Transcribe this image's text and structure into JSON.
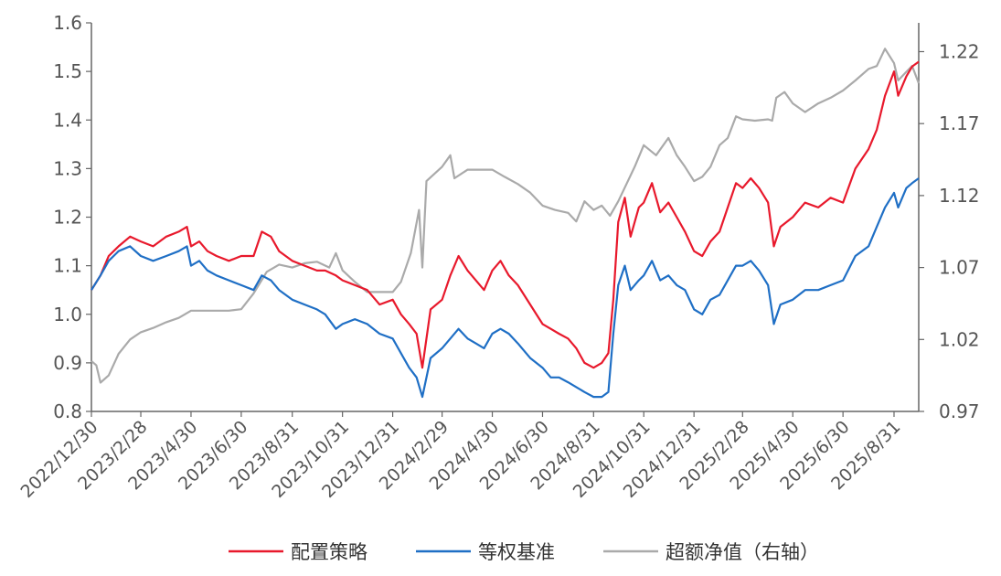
{
  "chart_data": {
    "type": "line",
    "title": "",
    "xlabel": "",
    "ylabel_left": "",
    "ylabel_right": "",
    "y_left_range": [
      0.8,
      1.6
    ],
    "y_left_ticks": [
      "0.8",
      "0.9",
      "1.0",
      "1.1",
      "1.2",
      "1.3",
      "1.4",
      "1.5",
      "1.6"
    ],
    "y_right_range": [
      0.97,
      1.24
    ],
    "y_right_ticks": [
      "0.97",
      "1.02",
      "1.07",
      "1.12",
      "1.17",
      "1.22"
    ],
    "x_range": [
      "2022-12-30",
      "2025-09-30"
    ],
    "x_tick_labels": [
      "2022/12/30",
      "2023/2/28",
      "2023/4/30",
      "2023/6/30",
      "2023/8/31",
      "2023/10/31",
      "2023/12/31",
      "2024/2/29",
      "2024/4/30",
      "2024/6/30",
      "2024/8/31",
      "2024/10/31",
      "2024/12/31",
      "2025/2/28",
      "2025/4/30",
      "2025/6/30",
      "2025/8/31"
    ],
    "x_tick_dates": [
      "2022-12-30",
      "2023-02-28",
      "2023-04-30",
      "2023-06-30",
      "2023-08-31",
      "2023-10-31",
      "2023-12-31",
      "2024-02-29",
      "2024-04-30",
      "2024-06-30",
      "2024-08-31",
      "2024-10-31",
      "2024-12-31",
      "2025-02-28",
      "2025-04-30",
      "2025-06-30",
      "2025-08-31"
    ],
    "grid": false,
    "legend_position": "bottom",
    "series": [
      {
        "name": "配置策略",
        "axis": "left",
        "color": "#e8192c",
        "points": [
          [
            "2022-12-30",
            1.05
          ],
          [
            "2023-01-10",
            1.08
          ],
          [
            "2023-01-20",
            1.12
          ],
          [
            "2023-02-01",
            1.14
          ],
          [
            "2023-02-15",
            1.16
          ],
          [
            "2023-02-28",
            1.15
          ],
          [
            "2023-03-15",
            1.14
          ],
          [
            "2023-03-31",
            1.16
          ],
          [
            "2023-04-15",
            1.17
          ],
          [
            "2023-04-25",
            1.18
          ],
          [
            "2023-04-30",
            1.14
          ],
          [
            "2023-05-10",
            1.15
          ],
          [
            "2023-05-20",
            1.13
          ],
          [
            "2023-05-31",
            1.12
          ],
          [
            "2023-06-15",
            1.11
          ],
          [
            "2023-06-30",
            1.12
          ],
          [
            "2023-07-15",
            1.12
          ],
          [
            "2023-07-25",
            1.17
          ],
          [
            "2023-08-05",
            1.16
          ],
          [
            "2023-08-15",
            1.13
          ],
          [
            "2023-08-31",
            1.11
          ],
          [
            "2023-09-15",
            1.1
          ],
          [
            "2023-09-30",
            1.09
          ],
          [
            "2023-10-10",
            1.09
          ],
          [
            "2023-10-23",
            1.08
          ],
          [
            "2023-10-31",
            1.07
          ],
          [
            "2023-11-15",
            1.06
          ],
          [
            "2023-11-30",
            1.05
          ],
          [
            "2023-12-15",
            1.02
          ],
          [
            "2023-12-31",
            1.03
          ],
          [
            "2024-01-10",
            1.0
          ],
          [
            "2024-01-20",
            0.98
          ],
          [
            "2024-01-29",
            0.96
          ],
          [
            "2024-02-05",
            0.89
          ],
          [
            "2024-02-15",
            1.01
          ],
          [
            "2024-02-29",
            1.03
          ],
          [
            "2024-03-10",
            1.08
          ],
          [
            "2024-03-20",
            1.12
          ],
          [
            "2024-03-31",
            1.09
          ],
          [
            "2024-04-10",
            1.07
          ],
          [
            "2024-04-20",
            1.05
          ],
          [
            "2024-04-30",
            1.09
          ],
          [
            "2024-05-10",
            1.11
          ],
          [
            "2024-05-20",
            1.08
          ],
          [
            "2024-05-31",
            1.06
          ],
          [
            "2024-06-15",
            1.02
          ],
          [
            "2024-06-30",
            0.98
          ],
          [
            "2024-07-10",
            0.97
          ],
          [
            "2024-07-20",
            0.96
          ],
          [
            "2024-07-31",
            0.95
          ],
          [
            "2024-08-10",
            0.93
          ],
          [
            "2024-08-20",
            0.9
          ],
          [
            "2024-08-31",
            0.89
          ],
          [
            "2024-09-10",
            0.9
          ],
          [
            "2024-09-18",
            0.92
          ],
          [
            "2024-09-24",
            1.03
          ],
          [
            "2024-09-30",
            1.19
          ],
          [
            "2024-10-08",
            1.24
          ],
          [
            "2024-10-15",
            1.16
          ],
          [
            "2024-10-25",
            1.22
          ],
          [
            "2024-10-31",
            1.23
          ],
          [
            "2024-11-10",
            1.27
          ],
          [
            "2024-11-20",
            1.21
          ],
          [
            "2024-11-30",
            1.23
          ],
          [
            "2024-12-10",
            1.2
          ],
          [
            "2024-12-20",
            1.17
          ],
          [
            "2024-12-31",
            1.13
          ],
          [
            "2025-01-10",
            1.12
          ],
          [
            "2025-01-20",
            1.15
          ],
          [
            "2025-01-31",
            1.17
          ],
          [
            "2025-02-10",
            1.22
          ],
          [
            "2025-02-20",
            1.27
          ],
          [
            "2025-02-28",
            1.26
          ],
          [
            "2025-03-10",
            1.28
          ],
          [
            "2025-03-20",
            1.26
          ],
          [
            "2025-03-31",
            1.23
          ],
          [
            "2025-04-07",
            1.14
          ],
          [
            "2025-04-15",
            1.18
          ],
          [
            "2025-04-30",
            1.2
          ],
          [
            "2025-05-15",
            1.23
          ],
          [
            "2025-05-31",
            1.22
          ],
          [
            "2025-06-15",
            1.24
          ],
          [
            "2025-06-30",
            1.23
          ],
          [
            "2025-07-15",
            1.3
          ],
          [
            "2025-07-31",
            1.34
          ],
          [
            "2025-08-10",
            1.38
          ],
          [
            "2025-08-20",
            1.45
          ],
          [
            "2025-08-31",
            1.5
          ],
          [
            "2025-09-05",
            1.45
          ],
          [
            "2025-09-15",
            1.49
          ],
          [
            "2025-09-22",
            1.51
          ],
          [
            "2025-09-30",
            1.52
          ]
        ]
      },
      {
        "name": "等权基准",
        "axis": "left",
        "color": "#1f6fc5",
        "points": [
          [
            "2022-12-30",
            1.05
          ],
          [
            "2023-01-10",
            1.08
          ],
          [
            "2023-01-20",
            1.11
          ],
          [
            "2023-02-01",
            1.13
          ],
          [
            "2023-02-15",
            1.14
          ],
          [
            "2023-02-28",
            1.12
          ],
          [
            "2023-03-15",
            1.11
          ],
          [
            "2023-03-31",
            1.12
          ],
          [
            "2023-04-15",
            1.13
          ],
          [
            "2023-04-25",
            1.14
          ],
          [
            "2023-04-30",
            1.1
          ],
          [
            "2023-05-10",
            1.11
          ],
          [
            "2023-05-20",
            1.09
          ],
          [
            "2023-05-31",
            1.08
          ],
          [
            "2023-06-15",
            1.07
          ],
          [
            "2023-06-30",
            1.06
          ],
          [
            "2023-07-15",
            1.05
          ],
          [
            "2023-07-25",
            1.08
          ],
          [
            "2023-08-05",
            1.07
          ],
          [
            "2023-08-15",
            1.05
          ],
          [
            "2023-08-31",
            1.03
          ],
          [
            "2023-09-15",
            1.02
          ],
          [
            "2023-09-30",
            1.01
          ],
          [
            "2023-10-10",
            1.0
          ],
          [
            "2023-10-23",
            0.97
          ],
          [
            "2023-10-31",
            0.98
          ],
          [
            "2023-11-15",
            0.99
          ],
          [
            "2023-11-30",
            0.98
          ],
          [
            "2023-12-15",
            0.96
          ],
          [
            "2023-12-31",
            0.95
          ],
          [
            "2024-01-10",
            0.92
          ],
          [
            "2024-01-20",
            0.89
          ],
          [
            "2024-01-29",
            0.87
          ],
          [
            "2024-02-05",
            0.83
          ],
          [
            "2024-02-15",
            0.91
          ],
          [
            "2024-02-29",
            0.93
          ],
          [
            "2024-03-10",
            0.95
          ],
          [
            "2024-03-20",
            0.97
          ],
          [
            "2024-03-31",
            0.95
          ],
          [
            "2024-04-10",
            0.94
          ],
          [
            "2024-04-20",
            0.93
          ],
          [
            "2024-04-30",
            0.96
          ],
          [
            "2024-05-10",
            0.97
          ],
          [
            "2024-05-20",
            0.96
          ],
          [
            "2024-05-31",
            0.94
          ],
          [
            "2024-06-15",
            0.91
          ],
          [
            "2024-06-30",
            0.89
          ],
          [
            "2024-07-10",
            0.87
          ],
          [
            "2024-07-20",
            0.87
          ],
          [
            "2024-07-31",
            0.86
          ],
          [
            "2024-08-10",
            0.85
          ],
          [
            "2024-08-20",
            0.84
          ],
          [
            "2024-08-31",
            0.83
          ],
          [
            "2024-09-10",
            0.83
          ],
          [
            "2024-09-18",
            0.84
          ],
          [
            "2024-09-24",
            0.96
          ],
          [
            "2024-09-30",
            1.06
          ],
          [
            "2024-10-08",
            1.1
          ],
          [
            "2024-10-15",
            1.05
          ],
          [
            "2024-10-25",
            1.07
          ],
          [
            "2024-10-31",
            1.08
          ],
          [
            "2024-11-10",
            1.11
          ],
          [
            "2024-11-20",
            1.07
          ],
          [
            "2024-11-30",
            1.08
          ],
          [
            "2024-12-10",
            1.06
          ],
          [
            "2024-12-20",
            1.05
          ],
          [
            "2024-12-31",
            1.01
          ],
          [
            "2025-01-10",
            1.0
          ],
          [
            "2025-01-20",
            1.03
          ],
          [
            "2025-01-31",
            1.04
          ],
          [
            "2025-02-10",
            1.07
          ],
          [
            "2025-02-20",
            1.1
          ],
          [
            "2025-02-28",
            1.1
          ],
          [
            "2025-03-10",
            1.11
          ],
          [
            "2025-03-20",
            1.09
          ],
          [
            "2025-03-31",
            1.06
          ],
          [
            "2025-04-07",
            0.98
          ],
          [
            "2025-04-15",
            1.02
          ],
          [
            "2025-04-30",
            1.03
          ],
          [
            "2025-05-15",
            1.05
          ],
          [
            "2025-05-31",
            1.05
          ],
          [
            "2025-06-15",
            1.06
          ],
          [
            "2025-06-30",
            1.07
          ],
          [
            "2025-07-15",
            1.12
          ],
          [
            "2025-07-31",
            1.14
          ],
          [
            "2025-08-10",
            1.18
          ],
          [
            "2025-08-20",
            1.22
          ],
          [
            "2025-08-31",
            1.25
          ],
          [
            "2025-09-05",
            1.22
          ],
          [
            "2025-09-15",
            1.26
          ],
          [
            "2025-09-22",
            1.27
          ],
          [
            "2025-09-30",
            1.28
          ]
        ]
      },
      {
        "name": "超额净值（右轴）",
        "axis": "right",
        "color": "#aaaaaa",
        "points": [
          [
            "2022-12-30",
            1.005
          ],
          [
            "2023-01-05",
            1.002
          ],
          [
            "2023-01-10",
            0.99
          ],
          [
            "2023-01-20",
            0.995
          ],
          [
            "2023-02-01",
            1.01
          ],
          [
            "2023-02-15",
            1.02
          ],
          [
            "2023-02-28",
            1.025
          ],
          [
            "2023-03-15",
            1.028
          ],
          [
            "2023-03-31",
            1.032
          ],
          [
            "2023-04-15",
            1.035
          ],
          [
            "2023-04-30",
            1.04
          ],
          [
            "2023-05-15",
            1.04
          ],
          [
            "2023-05-31",
            1.04
          ],
          [
            "2023-06-15",
            1.04
          ],
          [
            "2023-06-30",
            1.041
          ],
          [
            "2023-07-15",
            1.052
          ],
          [
            "2023-07-31",
            1.067
          ],
          [
            "2023-08-15",
            1.072
          ],
          [
            "2023-08-31",
            1.07
          ],
          [
            "2023-09-15",
            1.073
          ],
          [
            "2023-09-30",
            1.074
          ],
          [
            "2023-10-15",
            1.07
          ],
          [
            "2023-10-23",
            1.08
          ],
          [
            "2023-10-31",
            1.068
          ],
          [
            "2023-11-15",
            1.06
          ],
          [
            "2023-11-30",
            1.053
          ],
          [
            "2023-12-15",
            1.053
          ],
          [
            "2023-12-31",
            1.053
          ],
          [
            "2024-01-10",
            1.06
          ],
          [
            "2024-01-22",
            1.08
          ],
          [
            "2024-02-01",
            1.11
          ],
          [
            "2024-02-05",
            1.07
          ],
          [
            "2024-02-10",
            1.13
          ],
          [
            "2024-02-29",
            1.14
          ],
          [
            "2024-03-10",
            1.148
          ],
          [
            "2024-03-15",
            1.132
          ],
          [
            "2024-03-31",
            1.138
          ],
          [
            "2024-04-15",
            1.138
          ],
          [
            "2024-04-30",
            1.138
          ],
          [
            "2024-05-15",
            1.133
          ],
          [
            "2024-05-31",
            1.128
          ],
          [
            "2024-06-15",
            1.122
          ],
          [
            "2024-06-30",
            1.113
          ],
          [
            "2024-07-15",
            1.11
          ],
          [
            "2024-07-31",
            1.108
          ],
          [
            "2024-08-10",
            1.102
          ],
          [
            "2024-08-20",
            1.116
          ],
          [
            "2024-08-31",
            1.11
          ],
          [
            "2024-09-10",
            1.113
          ],
          [
            "2024-09-20",
            1.106
          ],
          [
            "2024-09-30",
            1.116
          ],
          [
            "2024-10-10",
            1.128
          ],
          [
            "2024-10-20",
            1.14
          ],
          [
            "2024-10-31",
            1.155
          ],
          [
            "2024-11-15",
            1.148
          ],
          [
            "2024-11-30",
            1.16
          ],
          [
            "2024-12-10",
            1.148
          ],
          [
            "2024-12-20",
            1.14
          ],
          [
            "2024-12-31",
            1.13
          ],
          [
            "2025-01-10",
            1.133
          ],
          [
            "2025-01-20",
            1.14
          ],
          [
            "2025-01-31",
            1.155
          ],
          [
            "2025-02-10",
            1.16
          ],
          [
            "2025-02-20",
            1.175
          ],
          [
            "2025-02-28",
            1.173
          ],
          [
            "2025-03-15",
            1.172
          ],
          [
            "2025-03-31",
            1.173
          ],
          [
            "2025-04-05",
            1.172
          ],
          [
            "2025-04-10",
            1.188
          ],
          [
            "2025-04-20",
            1.192
          ],
          [
            "2025-04-30",
            1.184
          ],
          [
            "2025-05-15",
            1.178
          ],
          [
            "2025-05-31",
            1.184
          ],
          [
            "2025-06-15",
            1.188
          ],
          [
            "2025-06-30",
            1.193
          ],
          [
            "2025-07-15",
            1.2
          ],
          [
            "2025-07-31",
            1.208
          ],
          [
            "2025-08-10",
            1.21
          ],
          [
            "2025-08-20",
            1.222
          ],
          [
            "2025-08-31",
            1.212
          ],
          [
            "2025-09-05",
            1.2
          ],
          [
            "2025-09-15",
            1.206
          ],
          [
            "2025-09-22",
            1.21
          ],
          [
            "2025-09-30",
            1.198
          ]
        ]
      }
    ]
  }
}
